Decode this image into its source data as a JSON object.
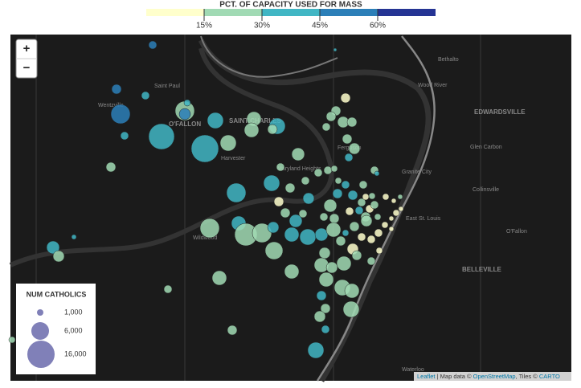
{
  "legend_color": {
    "title": "PCT. OF CAPACITY USED FOR MASS",
    "ticks": [
      "15%",
      "30%",
      "45%",
      "60%"
    ]
  },
  "legend_size": {
    "title": "NUM CATHOLICS",
    "labels": [
      "1,000",
      "6,000",
      "16,000"
    ]
  },
  "zoom": {
    "in": "+",
    "out": "−"
  },
  "places": [
    "Bethalto",
    "Wood River",
    "EDWARDSVILLE",
    "Glen Carbon",
    "Granite City",
    "Collinsville",
    "Saint Paul",
    "Wentzville",
    "O'FALLON",
    "SAINT CHARLES",
    "Harvester",
    "Maryland Heights",
    "Ferguson",
    "East St. Louis",
    "O'Fallon",
    "BELLEVILLE",
    "Wildwood",
    "Waterloo"
  ],
  "attribution": {
    "leaflet": "Leaflet",
    "mid": "| Map data ©",
    "osm": "OpenStreetMap",
    "tiles": ", Tiles ©",
    "carto": "CARTO"
  }
}
